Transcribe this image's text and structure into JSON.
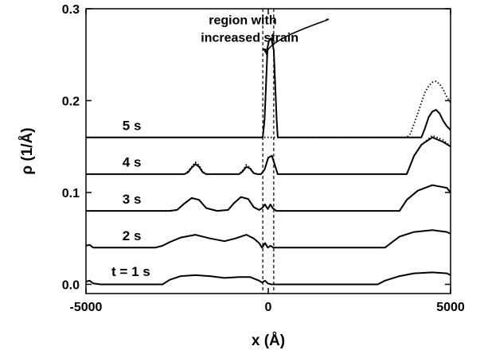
{
  "chart_data": {
    "type": "line",
    "title": "",
    "xlabel": "x (Å)",
    "ylabel": "ρ (1/Å)",
    "xlim": [
      -5000,
      5000
    ],
    "ylim": [
      -0.01,
      0.3
    ],
    "xticks": [
      -5000,
      0,
      5000
    ],
    "xtick_labels": [
      "-5000",
      "0",
      "5000"
    ],
    "yticks": [
      0.0,
      0.1,
      0.2,
      0.3
    ],
    "ytick_labels": [
      "0.0",
      "0.1",
      "0.2",
      "0.3"
    ],
    "grid": false,
    "colors": {
      "solid": "#000000",
      "dotted": "#000000"
    },
    "series": [
      {
        "name": "t = 1 s",
        "style": "solid",
        "x": [
          -5000,
          -4900,
          -4800,
          -4600,
          -4400,
          -3500,
          -3100,
          -2900,
          -2700,
          -2400,
          -2000,
          -1600,
          -1200,
          -800,
          -500,
          -250,
          -170,
          -90,
          -10,
          80,
          160,
          260,
          500,
          1000,
          2000,
          2800,
          3000,
          3200,
          3600,
          4000,
          4500,
          4900,
          5000
        ],
        "y": [
          0.003,
          0.004,
          0.001,
          0,
          0,
          0,
          0,
          0,
          0.005,
          0.009,
          0.01,
          0.009,
          0.007,
          0.008,
          0.008,
          0.004,
          0.002,
          0.004,
          0.001,
          0,
          0,
          0,
          0,
          0,
          0,
          0,
          0,
          0.004,
          0.009,
          0.012,
          0.013,
          0.012,
          0.01
        ]
      },
      {
        "name": "2 s",
        "style": "solid",
        "x": [
          -5000,
          -4900,
          -4800,
          -4600,
          -4400,
          -3600,
          -3100,
          -2900,
          -2700,
          -2400,
          -2000,
          -1600,
          -1200,
          -900,
          -600,
          -400,
          -250,
          -170,
          -90,
          -10,
          60,
          140,
          260,
          500,
          1500,
          2500,
          3000,
          3200,
          3400,
          3600,
          4000,
          4500,
          4900,
          5000
        ],
        "y": [
          0.042,
          0.043,
          0.04,
          0.04,
          0.04,
          0.04,
          0.04,
          0.042,
          0.046,
          0.051,
          0.054,
          0.05,
          0.047,
          0.05,
          0.054,
          0.05,
          0.045,
          0.04,
          0.045,
          0.04,
          0.042,
          0.04,
          0.04,
          0.04,
          0.04,
          0.04,
          0.04,
          0.04,
          0.046,
          0.052,
          0.057,
          0.059,
          0.057,
          0.055
        ]
      },
      {
        "name": "3 s",
        "style": "solid",
        "x": [
          -5000,
          -4000,
          -3300,
          -2700,
          -2500,
          -2300,
          -2100,
          -1900,
          -1700,
          -1400,
          -1100,
          -950,
          -750,
          -550,
          -400,
          -250,
          -170,
          -90,
          -10,
          60,
          120,
          220,
          500,
          1500,
          2500,
          3000,
          3400,
          3600,
          3800,
          4100,
          4500,
          4900,
          5000
        ],
        "y": [
          0.08,
          0.08,
          0.08,
          0.08,
          0.081,
          0.088,
          0.094,
          0.092,
          0.083,
          0.08,
          0.081,
          0.088,
          0.095,
          0.093,
          0.084,
          0.081,
          0.083,
          0.087,
          0.082,
          0.087,
          0.083,
          0.08,
          0.08,
          0.08,
          0.08,
          0.08,
          0.08,
          0.08,
          0.092,
          0.102,
          0.108,
          0.105,
          0.1
        ]
      },
      {
        "name": "3 s (dotted)",
        "style": "dotted",
        "x": [
          -5000,
          -4000,
          -3300,
          -2700,
          -2500,
          -2300,
          -2100,
          -1900,
          -1700,
          -1400,
          -1100,
          -950,
          -750,
          -550,
          -400,
          -250,
          -170,
          -90,
          -10,
          60,
          120,
          220,
          500,
          1500,
          2500,
          3000,
          3400,
          3600,
          3800,
          4100,
          4500,
          4900,
          5000
        ],
        "y": [
          0.08,
          0.08,
          0.08,
          0.08,
          0.081,
          0.088,
          0.094,
          0.092,
          0.083,
          0.08,
          0.081,
          0.088,
          0.095,
          0.093,
          0.084,
          0.081,
          0.083,
          0.087,
          0.082,
          0.087,
          0.083,
          0.08,
          0.08,
          0.08,
          0.08,
          0.08,
          0.08,
          0.08,
          0.092,
          0.102,
          0.108,
          0.105,
          0.1
        ]
      },
      {
        "name": "4 s",
        "style": "solid",
        "x": [
          -5000,
          -3500,
          -2500,
          -2300,
          -2200,
          -2100,
          -2000,
          -1900,
          -1800,
          -1700,
          -1600,
          -1000,
          -800,
          -700,
          -600,
          -500,
          -400,
          -300,
          -200,
          -100,
          0,
          100,
          180,
          260,
          500,
          2000,
          3000,
          3500,
          3800,
          4000,
          4200,
          4500,
          4800,
          5000
        ],
        "y": [
          0.12,
          0.12,
          0.12,
          0.12,
          0.122,
          0.127,
          0.131,
          0.128,
          0.122,
          0.12,
          0.12,
          0.12,
          0.12,
          0.123,
          0.128,
          0.126,
          0.121,
          0.12,
          0.12,
          0.125,
          0.138,
          0.14,
          0.13,
          0.12,
          0.12,
          0.12,
          0.12,
          0.12,
          0.12,
          0.14,
          0.152,
          0.16,
          0.155,
          0.15
        ]
      },
      {
        "name": "4 s (dotted)",
        "style": "dotted",
        "x": [
          -5000,
          -3500,
          -2500,
          -2300,
          -2200,
          -2100,
          -2000,
          -1900,
          -1800,
          -1700,
          -1600,
          -1000,
          -800,
          -700,
          -600,
          -500,
          -400,
          -300,
          -200,
          -100,
          0,
          100,
          180,
          260,
          500,
          2000,
          3000,
          3500,
          3800,
          4000,
          4200,
          4500,
          4800,
          5000
        ],
        "y": [
          0.12,
          0.12,
          0.12,
          0.12,
          0.123,
          0.128,
          0.133,
          0.13,
          0.123,
          0.12,
          0.12,
          0.12,
          0.12,
          0.124,
          0.13,
          0.127,
          0.121,
          0.12,
          0.12,
          0.125,
          0.138,
          0.14,
          0.13,
          0.12,
          0.12,
          0.12,
          0.12,
          0.12,
          0.12,
          0.14,
          0.152,
          0.162,
          0.157,
          0.15
        ]
      },
      {
        "name": "5 s",
        "style": "solid",
        "x": [
          -5000,
          -3000,
          -1000,
          -300,
          -150,
          -100,
          -60,
          -20,
          20,
          80,
          150,
          230,
          260,
          300,
          1000,
          3000,
          4000,
          4200,
          4300,
          4400,
          4500,
          4600,
          4700,
          4800,
          4900,
          5000
        ],
        "y": [
          0.16,
          0.16,
          0.16,
          0.16,
          0.16,
          0.18,
          0.22,
          0.258,
          0.265,
          0.268,
          0.255,
          0.18,
          0.16,
          0.16,
          0.16,
          0.16,
          0.16,
          0.16,
          0.17,
          0.182,
          0.188,
          0.19,
          0.186,
          0.178,
          0.172,
          0.168
        ]
      },
      {
        "name": "5 s (dotted)",
        "style": "dotted",
        "x": [
          -5000,
          -3000,
          -1000,
          3000,
          3800,
          3900,
          4000,
          4100,
          4200,
          4300,
          4400,
          4500,
          4600,
          4700,
          4800,
          4900,
          5000
        ],
        "y": [
          0.16,
          0.16,
          0.16,
          0.16,
          0.16,
          0.164,
          0.175,
          0.186,
          0.198,
          0.209,
          0.216,
          0.22,
          0.221,
          0.218,
          0.212,
          0.204,
          0.198
        ]
      }
    ],
    "dashed_lines_x": [
      -150,
      150
    ],
    "curve_labels": [
      {
        "text": "5 s",
        "x": -4000,
        "y": 0.168
      },
      {
        "text": "4 s",
        "x": -4000,
        "y": 0.128
      },
      {
        "text": "3 s",
        "x": -4000,
        "y": 0.088
      },
      {
        "text": "2 s",
        "x": -4000,
        "y": 0.048
      },
      {
        "text": "t = 1 s",
        "x": -4300,
        "y": 0.009
      }
    ],
    "annotation": {
      "lines": [
        "region with",
        "increased strain"
      ],
      "x": -1850,
      "y": 0.283,
      "arrow_to": [
        -50,
        0.25
      ]
    }
  }
}
